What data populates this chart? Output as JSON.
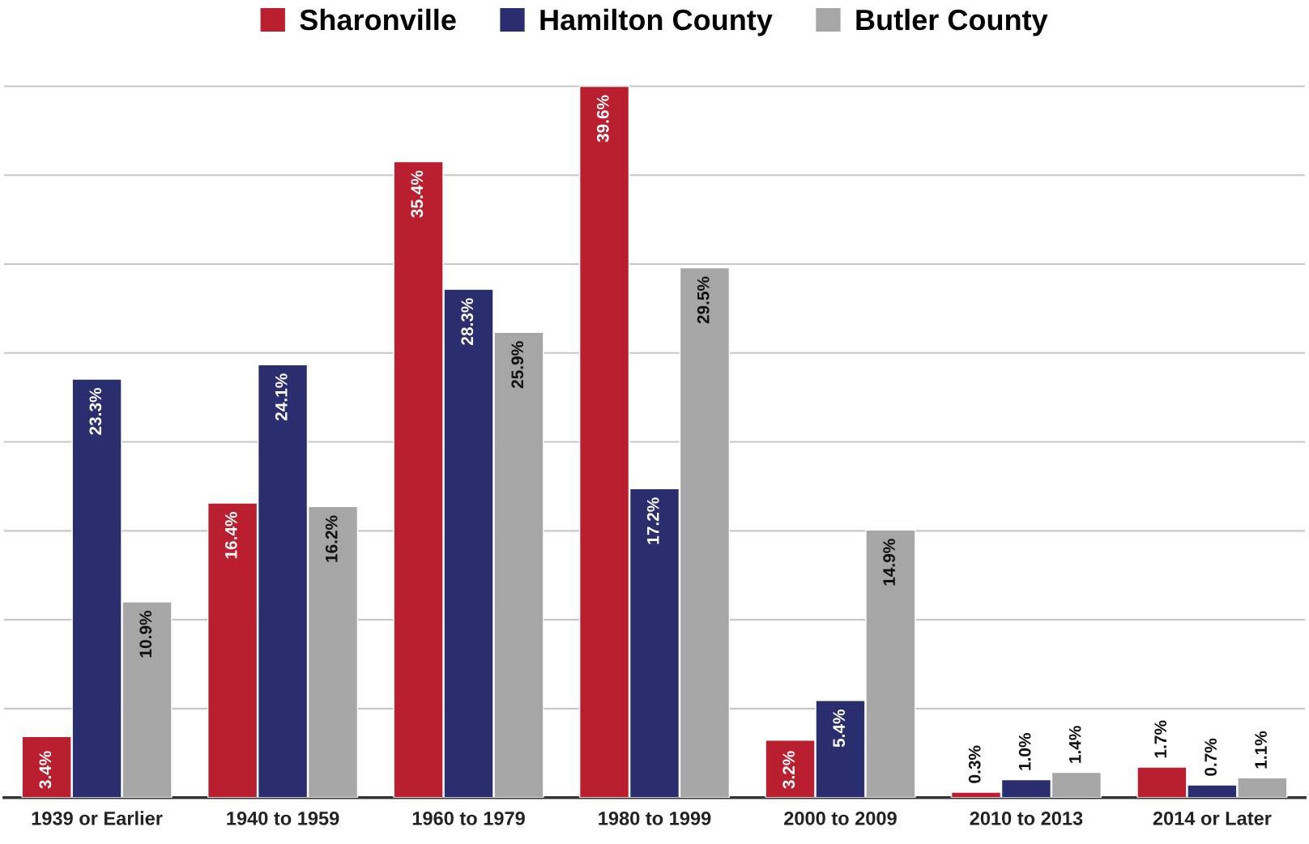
{
  "chart_data": {
    "type": "bar",
    "categories": [
      "1939 or Earlier",
      "1940 to 1959",
      "1960 to 1979",
      "1980 to 1999",
      "2000 to 2009",
      "2010 to 2013",
      "2014 or Later"
    ],
    "series": [
      {
        "name": "Sharonville",
        "color": "#b91f2e",
        "values": [
          3.4,
          16.4,
          35.4,
          39.6,
          3.2,
          0.3,
          1.7
        ],
        "value_labels": [
          "3.4%",
          "16.4%",
          "35.4%",
          "39.6%",
          "3.2%",
          "0.3%",
          "1.7%"
        ]
      },
      {
        "name": "Hamilton County",
        "color": "#2a2d6e",
        "values": [
          23.3,
          24.1,
          28.3,
          17.2,
          5.4,
          1.0,
          0.7
        ],
        "value_labels": [
          "23.3%",
          "24.1%",
          "28.3%",
          "17.2%",
          "5.4%",
          "1.0%",
          "0.7%"
        ]
      },
      {
        "name": "Butler County",
        "color": "#a6a6a6",
        "values": [
          10.9,
          16.2,
          25.9,
          29.5,
          14.9,
          1.4,
          1.1
        ],
        "value_labels": [
          "10.9%",
          "16.2%",
          "25.9%",
          "29.5%",
          "14.9%",
          "1.4%",
          "1.1%"
        ]
      }
    ],
    "grid": "y",
    "legend": "top",
    "tick_labels": "x"
  }
}
